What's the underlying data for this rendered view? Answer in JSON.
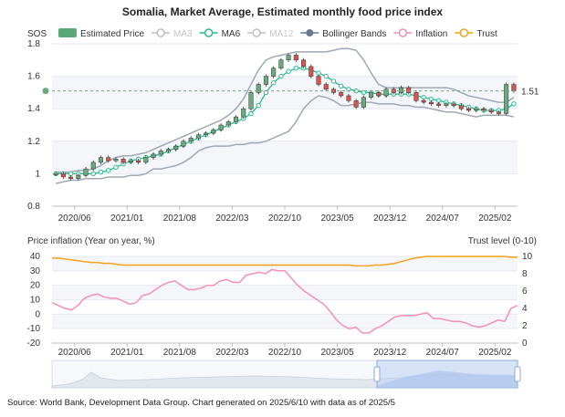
{
  "title": "Somalia, Market Average, Estimated monthly food price index",
  "source": "Source: World Bank, Development Data Group. Chart generated on 2025/6/10 with data as of 2025/5",
  "legend": [
    {
      "label": "Estimated Price",
      "color": "#5aa878",
      "kind": "box"
    },
    {
      "label": "MA3",
      "color": "#bfbfbf",
      "kind": "circle"
    },
    {
      "label": "MA6",
      "color": "#2dbb8c",
      "kind": "circle"
    },
    {
      "label": "MA12",
      "color": "#bfbfbf",
      "kind": "circle"
    },
    {
      "label": "Bollinger Bands",
      "color": "#6b7a90",
      "kind": "dot"
    },
    {
      "label": "Inflation",
      "color": "#f48fb8",
      "kind": "circle"
    },
    {
      "label": "Trust",
      "color": "#f2a31b",
      "kind": "circle"
    }
  ],
  "colors": {
    "up": "#6aaa7e",
    "down": "#d9534f",
    "band": "#a0a8b3",
    "ma6": "#2dbb8c",
    "inflation": "#f48fb8",
    "trust": "#f2a31b"
  },
  "chart_data": [
    {
      "type": "candlestick",
      "ylabel": "SOS",
      "ylim": [
        0.8,
        1.8
      ],
      "yticks": [
        "0.8",
        "1",
        "1.2",
        "1.4",
        "1.6",
        "1.8"
      ],
      "xticks": [
        "2020/06",
        "2021/01",
        "2021/08",
        "2022/03",
        "2022/10",
        "2023/05",
        "2023/12",
        "2024/07",
        "2025/02"
      ],
      "grid": true,
      "last_price_label": "1.51",
      "ma6": [
        1.0,
        1.0,
        1.0,
        1.0,
        1.0,
        1.0,
        1.01,
        1.02,
        1.04,
        1.06,
        1.08,
        1.09,
        1.1,
        1.11,
        1.12,
        1.14,
        1.16,
        1.18,
        1.2,
        1.22,
        1.24,
        1.26,
        1.28,
        1.3,
        1.32,
        1.34,
        1.37,
        1.42,
        1.5,
        1.56,
        1.6,
        1.63,
        1.65,
        1.65,
        1.64,
        1.62,
        1.6,
        1.57,
        1.54,
        1.52,
        1.51,
        1.5,
        1.5,
        1.49,
        1.49,
        1.49,
        1.49,
        1.49,
        1.48,
        1.47,
        1.46,
        1.45,
        1.44,
        1.43,
        1.42,
        1.41,
        1.4,
        1.39,
        1.39,
        1.39,
        1.4,
        1.43
      ],
      "bollinger_upper": [
        1.01,
        1.01,
        1.01,
        1.02,
        1.02,
        1.03,
        1.05,
        1.08,
        1.1,
        1.11,
        1.11,
        1.12,
        1.13,
        1.15,
        1.17,
        1.19,
        1.21,
        1.23,
        1.25,
        1.27,
        1.29,
        1.31,
        1.33,
        1.36,
        1.4,
        1.46,
        1.55,
        1.64,
        1.7,
        1.72,
        1.73,
        1.74,
        1.75,
        1.75,
        1.75,
        1.75,
        1.75,
        1.76,
        1.77,
        1.77,
        1.76,
        1.7,
        1.62,
        1.55,
        1.53,
        1.53,
        1.53,
        1.53,
        1.53,
        1.53,
        1.53,
        1.53,
        1.53,
        1.52,
        1.5,
        1.48,
        1.47,
        1.46,
        1.45,
        1.44,
        1.44,
        1.47
      ],
      "bollinger_lower": [
        0.94,
        0.95,
        0.96,
        0.96,
        0.97,
        0.97,
        0.97,
        0.98,
        0.98,
        0.98,
        0.99,
        0.99,
        1.0,
        1.03,
        1.03,
        1.04,
        1.05,
        1.07,
        1.1,
        1.14,
        1.16,
        1.17,
        1.17,
        1.17,
        1.18,
        1.18,
        1.19,
        1.19,
        1.2,
        1.22,
        1.24,
        1.26,
        1.32,
        1.4,
        1.45,
        1.48,
        1.47,
        1.45,
        1.42,
        1.42,
        1.43,
        1.44,
        1.44,
        1.43,
        1.43,
        1.43,
        1.42,
        1.42,
        1.41,
        1.41,
        1.4,
        1.39,
        1.38,
        1.38,
        1.37,
        1.36,
        1.35,
        1.36,
        1.36,
        1.36,
        1.36,
        1.35
      ],
      "candles": [
        {
          "o": 1.0,
          "c": 1.0
        },
        {
          "o": 1.0,
          "c": 0.98
        },
        {
          "o": 0.98,
          "c": 0.97
        },
        {
          "o": 0.97,
          "c": 0.99
        },
        {
          "o": 0.99,
          "c": 1.03
        },
        {
          "o": 1.03,
          "c": 1.07
        },
        {
          "o": 1.07,
          "c": 1.1
        },
        {
          "o": 1.1,
          "c": 1.08
        },
        {
          "o": 1.08,
          "c": 1.09
        },
        {
          "o": 1.09,
          "c": 1.07
        },
        {
          "o": 1.07,
          "c": 1.08
        },
        {
          "o": 1.08,
          "c": 1.07
        },
        {
          "o": 1.07,
          "c": 1.1
        },
        {
          "o": 1.1,
          "c": 1.12
        },
        {
          "o": 1.12,
          "c": 1.14
        },
        {
          "o": 1.14,
          "c": 1.15
        },
        {
          "o": 1.15,
          "c": 1.17
        },
        {
          "o": 1.17,
          "c": 1.2
        },
        {
          "o": 1.2,
          "c": 1.22
        },
        {
          "o": 1.22,
          "c": 1.24
        },
        {
          "o": 1.24,
          "c": 1.25
        },
        {
          "o": 1.25,
          "c": 1.27
        },
        {
          "o": 1.27,
          "c": 1.3
        },
        {
          "o": 1.3,
          "c": 1.32
        },
        {
          "o": 1.32,
          "c": 1.35
        },
        {
          "o": 1.35,
          "c": 1.4
        },
        {
          "o": 1.4,
          "c": 1.5
        },
        {
          "o": 1.5,
          "c": 1.55
        },
        {
          "o": 1.55,
          "c": 1.6
        },
        {
          "o": 1.6,
          "c": 1.65
        },
        {
          "o": 1.65,
          "c": 1.7
        },
        {
          "o": 1.7,
          "c": 1.73
        },
        {
          "o": 1.73,
          "c": 1.7
        },
        {
          "o": 1.7,
          "c": 1.66
        },
        {
          "o": 1.66,
          "c": 1.6
        },
        {
          "o": 1.6,
          "c": 1.55
        },
        {
          "o": 1.55,
          "c": 1.52
        },
        {
          "o": 1.52,
          "c": 1.5
        },
        {
          "o": 1.5,
          "c": 1.48
        },
        {
          "o": 1.48,
          "c": 1.45
        },
        {
          "o": 1.45,
          "c": 1.41
        },
        {
          "o": 1.41,
          "c": 1.47
        },
        {
          "o": 1.47,
          "c": 1.5
        },
        {
          "o": 1.5,
          "c": 1.48
        },
        {
          "o": 1.48,
          "c": 1.52
        },
        {
          "o": 1.52,
          "c": 1.5
        },
        {
          "o": 1.5,
          "c": 1.53
        },
        {
          "o": 1.53,
          "c": 1.5
        },
        {
          "o": 1.5,
          "c": 1.45
        },
        {
          "o": 1.45,
          "c": 1.44
        },
        {
          "o": 1.44,
          "c": 1.43
        },
        {
          "o": 1.43,
          "c": 1.42
        },
        {
          "o": 1.42,
          "c": 1.43
        },
        {
          "o": 1.43,
          "c": 1.42
        },
        {
          "o": 1.42,
          "c": 1.4
        },
        {
          "o": 1.4,
          "c": 1.39
        },
        {
          "o": 1.39,
          "c": 1.4
        },
        {
          "o": 1.4,
          "c": 1.39
        },
        {
          "o": 1.39,
          "c": 1.38
        },
        {
          "o": 1.38,
          "c": 1.37
        },
        {
          "o": 1.37,
          "c": 1.55
        },
        {
          "o": 1.55,
          "c": 1.51
        }
      ]
    },
    {
      "type": "line",
      "ylabel_left": "Price inflation (Year on year, %)",
      "ylabel_right": "Trust level (0-10)",
      "ylim_left": [
        -20,
        40
      ],
      "ylim_right": [
        0,
        10
      ],
      "yticks_left": [
        "-20",
        "-10",
        "0",
        "10",
        "20",
        "30",
        "40"
      ],
      "yticks_right": [
        "0",
        "2",
        "4",
        "6",
        "8",
        "10"
      ],
      "xticks": [
        "2020/06",
        "2021/01",
        "2021/08",
        "2022/03",
        "2022/10",
        "2023/05",
        "2023/12",
        "2024/07",
        "2025/02"
      ],
      "series": [
        {
          "name": "Inflation",
          "axis": "left",
          "values": [
            8,
            6,
            4,
            3,
            6,
            11,
            13,
            14,
            12,
            11,
            11,
            9,
            7,
            8,
            13,
            14,
            17,
            20,
            22,
            23,
            20,
            17,
            17,
            18,
            20,
            20,
            23,
            24,
            22,
            22,
            27,
            28,
            29,
            28,
            31,
            30,
            30,
            25,
            20,
            16,
            13,
            10,
            7,
            2,
            -4,
            -8,
            -10,
            -9,
            -13,
            -13,
            -10,
            -8,
            -5,
            -2,
            -1,
            -1,
            -1,
            0,
            1,
            -3,
            -3,
            -4,
            -5,
            -5,
            -6,
            -8,
            -9,
            -8,
            -6,
            -4,
            -5,
            4,
            6
          ]
        },
        {
          "name": "Trust",
          "axis": "right",
          "values": [
            9.8,
            9.8,
            9.7,
            9.6,
            9.5,
            9.4,
            9.3,
            9.3,
            9.2,
            9.2,
            9.1,
            9.0,
            9.0,
            9.0,
            9.0,
            9.0,
            9.0,
            9.0,
            9.0,
            9.0,
            9.0,
            9.0,
            9.0,
            9.0,
            9.0,
            9.0,
            9.0,
            9.0,
            9.0,
            9.0,
            9.0,
            9.0,
            9.0,
            9.0,
            9.0,
            9.0,
            9.0,
            9.0,
            9.0,
            9.0,
            9.0,
            9.0,
            9.0,
            9.0,
            9.0,
            9.0,
            9.0,
            8.9,
            8.9,
            8.9,
            9.0,
            9.0,
            9.1,
            9.2,
            9.4,
            9.6,
            9.8,
            9.9,
            10.0,
            10.0,
            10.0,
            10.0,
            10.0,
            10.0,
            10.0,
            10.0,
            10.0,
            10.0,
            10.0,
            10.0,
            10.0,
            9.9,
            9.9
          ]
        }
      ]
    }
  ]
}
